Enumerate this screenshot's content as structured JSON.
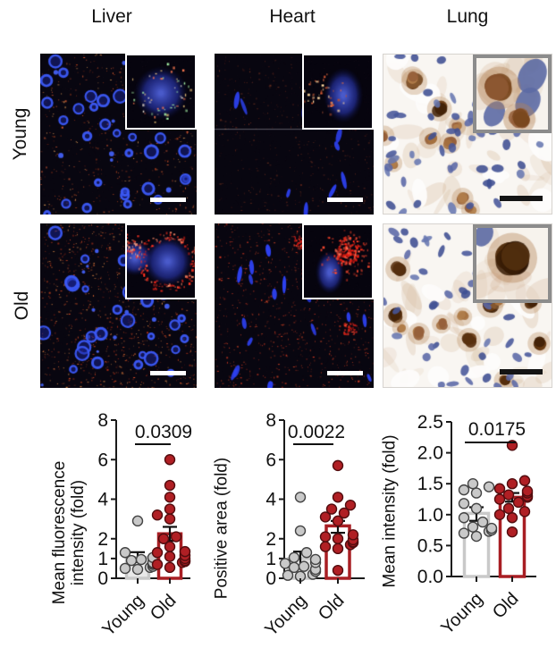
{
  "header": {
    "columns": [
      "Liver",
      "Heart",
      "Lung"
    ]
  },
  "rows": [
    {
      "label": "Young"
    },
    {
      "label": "Old"
    }
  ],
  "panels": [
    {
      "tissue": "Liver",
      "age": "Young",
      "stain": "fluorescence",
      "has_inset": true,
      "scalebar": "white"
    },
    {
      "tissue": "Heart",
      "age": "Young",
      "stain": "fluorescence",
      "has_inset": true,
      "scalebar": "white"
    },
    {
      "tissue": "Lung",
      "age": "Young",
      "stain": "ihc",
      "has_inset": true,
      "scalebar": "black"
    },
    {
      "tissue": "Liver",
      "age": "Old",
      "stain": "fluorescence",
      "has_inset": true,
      "scalebar": "white"
    },
    {
      "tissue": "Heart",
      "age": "Old",
      "stain": "fluorescence",
      "has_inset": true,
      "scalebar": "white"
    },
    {
      "tissue": "Lung",
      "age": "Old",
      "stain": "ihc",
      "has_inset": true,
      "scalebar": "black"
    }
  ],
  "colors": {
    "old_accent": "#a81e23",
    "old_point_fill": "#b01f24",
    "old_point_stroke": "#530d0f",
    "young_point_fill": "#c9c9c9",
    "young_point_stroke": "#444444",
    "young_bar_stroke": "#c9c9c9",
    "axis": "#1a1a1a"
  },
  "chart_data": [
    {
      "type": "bar",
      "tissue": "Liver",
      "p_value": "0.0309",
      "ylabel": "Mean fluorescence intensity (fold)",
      "ylabel_lines": [
        "Mean fluorescence",
        "intensity (fold)"
      ],
      "ylim": [
        0,
        8
      ],
      "yticks": [
        "0",
        "1",
        "2",
        "4",
        "6",
        "8"
      ],
      "categories": [
        "Young",
        "Old"
      ],
      "series": [
        {
          "name": "Young",
          "bar_mean": 1.05,
          "err_low": 0.82,
          "err_high": 1.32,
          "bar_fill": "#e9e9e9",
          "bar_stroke": "#c9c9c9",
          "point_fill": "#c9c9c9",
          "point_stroke": "#444444",
          "points": [
            0.45,
            0.5,
            0.55,
            0.6,
            0.7,
            0.75,
            0.8,
            0.9,
            0.95,
            1.05,
            1.3,
            2.9
          ]
        },
        {
          "name": "Old",
          "bar_mean": 2.25,
          "err_low": 1.9,
          "err_high": 2.6,
          "bar_fill": "#ffffff",
          "bar_stroke": "#a81e23",
          "point_fill": "#b01f24",
          "point_stroke": "#530d0f",
          "points": [
            0.55,
            0.7,
            0.8,
            0.85,
            0.9,
            1.0,
            1.1,
            1.15,
            1.3,
            1.35,
            1.6,
            2.0,
            2.1,
            3.0,
            3.2,
            3.5,
            4.1,
            4.7,
            6.0
          ]
        }
      ]
    },
    {
      "type": "bar",
      "tissue": "Heart",
      "p_value": "0.0022",
      "ylabel": "Positive area (fold)",
      "ylabel_lines": [
        "Positive area (fold)"
      ],
      "ylim": [
        0,
        8
      ],
      "yticks": [
        "0",
        "1",
        "2",
        "4",
        "6",
        "8"
      ],
      "categories": [
        "Young",
        "Old"
      ],
      "series": [
        {
          "name": "Young",
          "bar_mean": 1.0,
          "err_low": 0.62,
          "err_high": 1.35,
          "bar_fill": "#e9e9e9",
          "bar_stroke": "#c9c9c9",
          "point_fill": "#c9c9c9",
          "point_stroke": "#444444",
          "points": [
            0.1,
            0.15,
            0.2,
            0.35,
            0.45,
            0.55,
            0.6,
            0.75,
            0.8,
            0.95,
            1.05,
            1.3,
            2.4,
            4.1
          ]
        },
        {
          "name": "Old",
          "bar_mean": 2.65,
          "err_low": 2.3,
          "err_high": 2.9,
          "bar_fill": "#ffffff",
          "bar_stroke": "#a81e23",
          "point_fill": "#b01f24",
          "point_stroke": "#530d0f",
          "points": [
            0.4,
            1.5,
            1.6,
            1.7,
            1.8,
            1.85,
            1.95,
            2.0,
            2.1,
            2.2,
            2.9,
            3.1,
            3.3,
            3.5,
            3.7,
            4.1,
            5.7
          ]
        }
      ]
    },
    {
      "type": "bar",
      "tissue": "Lung",
      "p_value": "0.0175",
      "ylabel": "Mean intensity (fold)",
      "ylabel_lines": [
        "Mean intensity (fold)"
      ],
      "ylim": [
        0,
        2.5
      ],
      "yticks": [
        "0.0",
        "0.5",
        "1.0",
        "1.5",
        "2.0",
        "2.5"
      ],
      "categories": [
        "Young",
        "Old"
      ],
      "series": [
        {
          "name": "Young",
          "bar_mean": 1.02,
          "err_low": 0.9,
          "err_high": 1.12,
          "bar_fill": "#ffffff",
          "bar_stroke": "#c9c9c9",
          "point_fill": "#c9c9c9",
          "point_stroke": "#444444",
          "points": [
            0.65,
            0.7,
            0.73,
            0.75,
            0.78,
            0.8,
            0.88,
            0.95,
            1.1,
            1.18,
            1.35,
            1.4,
            1.45,
            1.5
          ]
        },
        {
          "name": "Old",
          "bar_mean": 1.28,
          "err_low": 1.21,
          "err_high": 1.35,
          "bar_fill": "#ffffff",
          "bar_stroke": "#a81e23",
          "point_fill": "#b01f24",
          "point_stroke": "#530d0f",
          "points": [
            0.72,
            0.95,
            1.0,
            1.05,
            1.1,
            1.2,
            1.25,
            1.28,
            1.3,
            1.32,
            1.35,
            1.38,
            1.42,
            1.5,
            1.55,
            2.12
          ]
        }
      ]
    }
  ]
}
